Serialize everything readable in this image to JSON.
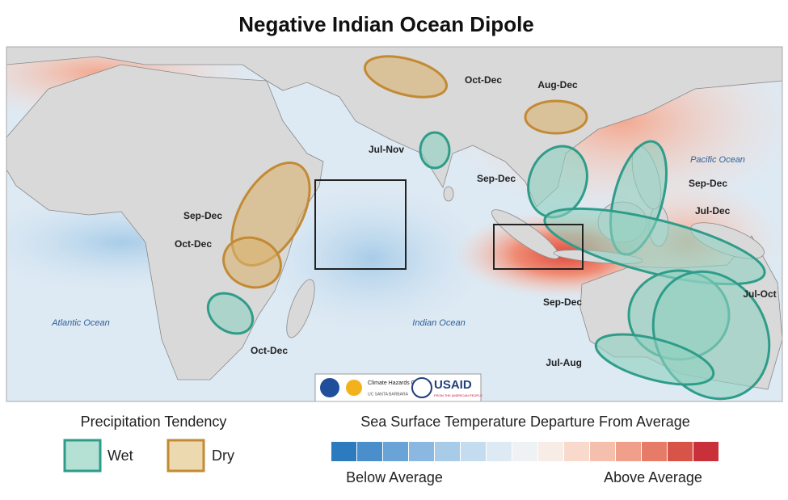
{
  "title": "Negative Indian Ocean Dipole",
  "oceans": [
    "Pacific Ocean",
    "Atlantic Ocean",
    "Indian Ocean"
  ],
  "regions": [
    {
      "label": "Oct-Dec",
      "tendency": "Dry"
    },
    {
      "label": "Aug-Dec",
      "tendency": "Dry"
    },
    {
      "label": "Jul-Nov",
      "tendency": "Wet"
    },
    {
      "label": "Sep-Dec",
      "tendency": "Wet"
    },
    {
      "label": "Sep-Dec",
      "tendency": "Wet"
    },
    {
      "label": "Jul-Dec",
      "tendency": "Wet"
    },
    {
      "label": "Sep-Dec",
      "tendency": "Dry"
    },
    {
      "label": "Oct-Dec",
      "tendency": "Dry"
    },
    {
      "label": "Oct-Dec",
      "tendency": "Wet"
    },
    {
      "label": "Sep-Dec",
      "tendency": "Wet"
    },
    {
      "label": "Jul-Oct",
      "tendency": "Wet"
    },
    {
      "label": "Jul-Aug",
      "tendency": "Wet"
    }
  ],
  "logos": {
    "chc": "Climate Hazards Center",
    "ucsb": "UC SANTA BARBARA",
    "usaid": "USAID",
    "usaid_tagline": "FROM THE AMERICAN PEOPLE"
  },
  "legend": {
    "precip_title": "Precipitation Tendency",
    "wet": "Wet",
    "dry": "Dry",
    "sst_title": "Sea Surface Temperature Departure From Average",
    "below": "Below Average",
    "above": "Above Average"
  }
}
